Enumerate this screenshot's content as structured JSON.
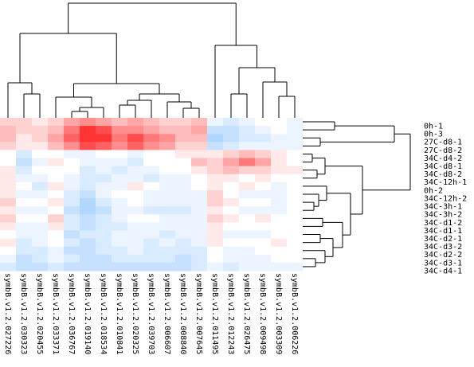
{
  "chart_data": {
    "type": "heatmap",
    "title": "",
    "xlabel": "",
    "ylabel": "",
    "colors": {
      "low": "#3d9bff",
      "mid": "#ffffff",
      "high": "#ff1f1f"
    },
    "value_range": [
      -1,
      1
    ],
    "rows": [
      "0h-1",
      "0h-3",
      "27C-d8-1",
      "27C-d8-2",
      "34C-d4-2",
      "34C-d8-1",
      "34C-d8-2",
      "34C-12h-1",
      "0h-2",
      "34C-12h-2",
      "34C-3h-1",
      "34C-3h-2",
      "34C-d1-2",
      "34C-d1-1",
      "34C-d2-1",
      "34C-d3-2",
      "34C-d2-2",
      "34C-d3-1",
      "34C-d4-1"
    ],
    "columns": [
      "symbB.v1.2.027226",
      "symbB.v1.2.030323",
      "symbB.v1.2.020455",
      "symbB.v1.2.033371",
      "symbB.v1.2.036767",
      "symbB.v1.2.019140",
      "symbB.v1.2.018534",
      "symbB.v1.2.010841",
      "symbB.v1.2.020325",
      "symbB.v1.2.039703",
      "symbB.v1.2.006607",
      "symbB.v1.2.008840",
      "symbB.v1.2.007645",
      "symbB.v1.2.011495",
      "symbB.v1.2.012243",
      "symbB.v1.2.026475",
      "symbB.v1.2.009498",
      "symbB.v1.2.003309",
      "symbB.v1.2.006226"
    ],
    "values": [
      [
        0.2,
        0.2,
        0.1,
        0.2,
        0.4,
        0.5,
        0.4,
        0.3,
        0.4,
        0.3,
        0.2,
        0.2,
        0.3,
        -0.1,
        -0.2,
        -0.1,
        0.0,
        0.0,
        -0.1
      ],
      [
        0.3,
        0.2,
        0.2,
        0.3,
        0.6,
        0.9,
        0.8,
        0.5,
        0.5,
        0.4,
        0.3,
        0.3,
        0.4,
        -0.3,
        -0.3,
        -0.2,
        -0.1,
        0.0,
        -0.1
      ],
      [
        0.3,
        0.1,
        0.2,
        0.4,
        0.7,
        0.9,
        0.9,
        0.6,
        0.8,
        0.6,
        0.5,
        0.3,
        0.3,
        -0.4,
        -0.3,
        -0.2,
        -0.2,
        -0.1,
        -0.1
      ],
      [
        0.2,
        0.1,
        0.1,
        0.3,
        0.5,
        0.8,
        0.7,
        0.5,
        0.7,
        0.5,
        0.4,
        0.2,
        0.2,
        -0.3,
        -0.2,
        -0.1,
        -0.1,
        -0.1,
        -0.1
      ],
      [
        0.0,
        -0.2,
        0.0,
        0.0,
        -0.1,
        -0.1,
        0.0,
        0.0,
        -0.1,
        0.0,
        0.0,
        0.1,
        0.1,
        0.1,
        0.2,
        0.3,
        0.2,
        0.1,
        0.0
      ],
      [
        0.0,
        -0.3,
        -0.1,
        0.1,
        0.0,
        -0.1,
        -0.1,
        -0.1,
        -0.2,
        0.0,
        0.0,
        0.0,
        0.3,
        0.2,
        0.4,
        0.6,
        0.4,
        0.1,
        0.0
      ],
      [
        0.1,
        -0.2,
        0.0,
        0.0,
        0.0,
        -0.2,
        -0.1,
        -0.2,
        -0.1,
        -0.1,
        0.0,
        0.0,
        0.1,
        0.2,
        0.3,
        0.2,
        0.2,
        0.1,
        0.1
      ],
      [
        0.1,
        -0.1,
        -0.1,
        0.0,
        -0.1,
        -0.2,
        -0.2,
        -0.1,
        -0.1,
        -0.2,
        -0.1,
        -0.1,
        0.0,
        0.1,
        0.1,
        0.0,
        0.1,
        0.0,
        0.0
      ],
      [
        0.1,
        0.0,
        -0.2,
        0.1,
        -0.1,
        -0.2,
        -0.1,
        -0.1,
        0.1,
        0.0,
        -0.1,
        -0.1,
        0.0,
        0.1,
        0.0,
        0.1,
        0.0,
        -0.1,
        0.0
      ],
      [
        0.1,
        -0.1,
        -0.1,
        0.0,
        -0.2,
        -0.3,
        -0.1,
        0.0,
        0.0,
        -0.1,
        -0.1,
        -0.1,
        -0.1,
        0.2,
        0.0,
        -0.1,
        -0.1,
        -0.1,
        0.0
      ],
      [
        0.2,
        0.0,
        0.0,
        0.1,
        -0.2,
        -0.4,
        -0.2,
        -0.1,
        0.0,
        -0.1,
        -0.1,
        -0.1,
        -0.1,
        0.2,
        0.1,
        0.0,
        0.0,
        -0.1,
        0.0
      ],
      [
        0.1,
        -0.1,
        -0.1,
        0.0,
        -0.3,
        -0.4,
        -0.3,
        -0.1,
        -0.1,
        -0.2,
        -0.2,
        -0.2,
        -0.1,
        0.1,
        0.0,
        -0.1,
        -0.1,
        -0.1,
        0.0
      ],
      [
        0.2,
        0.0,
        0.0,
        0.2,
        -0.2,
        -0.3,
        -0.2,
        -0.1,
        0.0,
        0.0,
        -0.1,
        -0.1,
        -0.1,
        0.2,
        0.1,
        0.0,
        0.1,
        0.0,
        0.0
      ],
      [
        0.1,
        -0.1,
        -0.1,
        0.1,
        -0.2,
        -0.3,
        -0.2,
        -0.2,
        -0.1,
        -0.1,
        -0.1,
        -0.1,
        -0.1,
        0.1,
        0.0,
        0.0,
        0.0,
        0.0,
        0.0
      ],
      [
        0.0,
        -0.1,
        -0.1,
        0.0,
        -0.3,
        -0.2,
        -0.2,
        -0.1,
        -0.1,
        -0.1,
        -0.2,
        -0.1,
        -0.1,
        0.1,
        -0.1,
        -0.1,
        -0.1,
        0.0,
        0.0
      ],
      [
        0.1,
        -0.2,
        -0.1,
        0.0,
        -0.2,
        -0.3,
        -0.2,
        -0.1,
        -0.1,
        -0.2,
        -0.1,
        -0.2,
        -0.1,
        0.1,
        0.0,
        0.0,
        0.0,
        0.1,
        0.0
      ],
      [
        0.0,
        -0.2,
        -0.2,
        -0.1,
        -0.3,
        -0.3,
        -0.2,
        -0.2,
        -0.1,
        -0.2,
        -0.2,
        -0.2,
        -0.2,
        0.0,
        -0.1,
        -0.1,
        0.0,
        0.0,
        0.0
      ],
      [
        -0.1,
        -0.3,
        -0.2,
        -0.1,
        -0.2,
        -0.3,
        -0.3,
        -0.2,
        -0.2,
        -0.2,
        -0.2,
        -0.3,
        -0.2,
        0.0,
        -0.1,
        -0.1,
        -0.1,
        0.0,
        0.0
      ],
      [
        -0.2,
        -0.3,
        -0.3,
        -0.2,
        -0.3,
        -0.3,
        -0.3,
        -0.3,
        -0.3,
        -0.3,
        -0.3,
        -0.3,
        -0.2,
        -0.1,
        -0.2,
        -0.1,
        -0.1,
        -0.1,
        -0.1
      ]
    ]
  }
}
